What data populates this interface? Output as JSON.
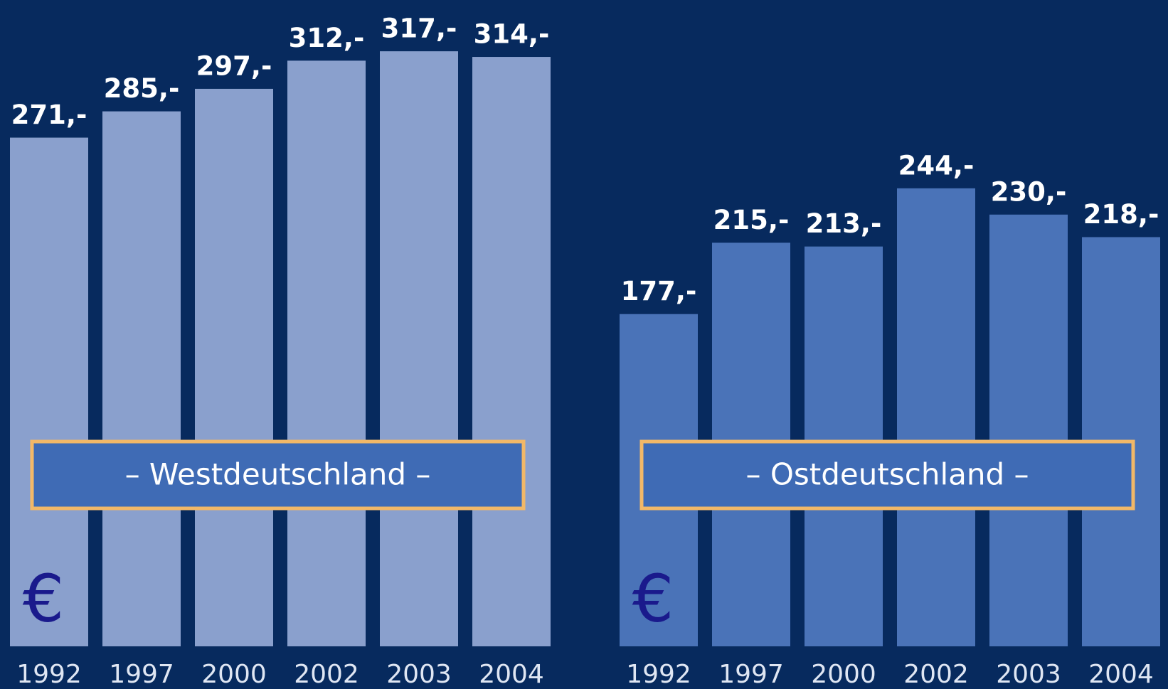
{
  "chart_data": [
    {
      "type": "bar",
      "title": "– Westdeutschland –",
      "unit": "€",
      "categories": [
        "1992",
        "1997",
        "2000",
        "2002",
        "2003",
        "2004"
      ],
      "values": [
        271,
        285,
        297,
        312,
        317,
        314
      ],
      "value_labels": [
        "271,-",
        "285,-",
        "297,-",
        "312,-",
        "317,-",
        "314,-"
      ],
      "color": "#8aa0cd"
    },
    {
      "type": "bar",
      "title": "– Ostdeutschland –",
      "unit": "€",
      "categories": [
        "1992",
        "1997",
        "2000",
        "2002",
        "2003",
        "2004"
      ],
      "values": [
        177,
        215,
        213,
        244,
        230,
        218
      ],
      "value_labels": [
        "177,-",
        "215,-",
        "213,-",
        "244,-",
        "230,-",
        "218,-"
      ],
      "color": "#4a73b8"
    }
  ]
}
